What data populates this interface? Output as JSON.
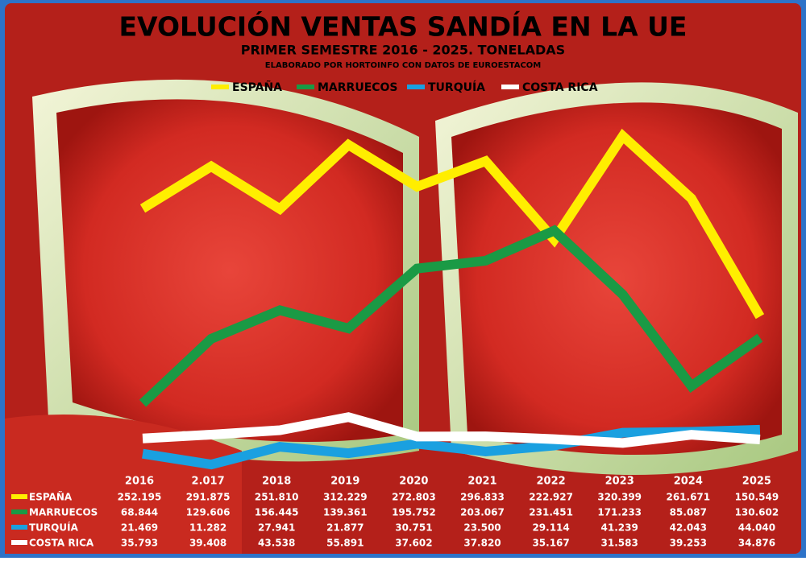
{
  "chart_data": {
    "type": "line",
    "title": "EVOLUCIÓN VENTAS SANDÍA EN LA UE",
    "subtitle": "PRIMER SEMESTRE 2016 - 2025. TONELADAS",
    "note": "ELABORADO POR HORTOINFO CON DATOS DE EUROESTACOM",
    "categories": [
      "2016",
      "2.017",
      "2018",
      "2019",
      "2020",
      "2021",
      "2022",
      "2023",
      "2024",
      "2025"
    ],
    "ylim": [
      0,
      350000
    ],
    "series": [
      {
        "name": "ESPAÑA",
        "color": "#ffee00",
        "values": [
          252195,
          291875,
          251810,
          312229,
          272803,
          296833,
          222927,
          320399,
          261671,
          150549
        ],
        "value_labels": [
          "252.195",
          "291.875",
          "251.810",
          "312.229",
          "272.803",
          "296.833",
          "222.927",
          "320.399",
          "261.671",
          "150.549"
        ]
      },
      {
        "name": "MARRUECOS",
        "color": "#1a9a45",
        "values": [
          68844,
          129606,
          156445,
          139361,
          195752,
          203067,
          231451,
          171233,
          85087,
          130602
        ],
        "value_labels": [
          "68.844",
          "129.606",
          "156.445",
          "139.361",
          "195.752",
          "203.067",
          "231.451",
          "171.233",
          "85.087",
          "130.602"
        ]
      },
      {
        "name": "TURQUÍA",
        "color": "#1aa0e0",
        "values": [
          21469,
          11282,
          27941,
          21877,
          30751,
          23500,
          29114,
          41239,
          42043,
          44040
        ],
        "value_labels": [
          "21.469",
          "11.282",
          "27.941",
          "21.877",
          "30.751",
          "23.500",
          "29.114",
          "41.239",
          "42.043",
          "44.040"
        ]
      },
      {
        "name": "COSTA RICA",
        "color": "#ffffff",
        "values": [
          35793,
          39408,
          43538,
          55891,
          37602,
          37820,
          35167,
          31583,
          39253,
          34876
        ],
        "value_labels": [
          "35.793",
          "39.408",
          "43.538",
          "55.891",
          "37.602",
          "37.820",
          "35.167",
          "31.583",
          "39.253",
          "34.876"
        ]
      }
    ]
  }
}
